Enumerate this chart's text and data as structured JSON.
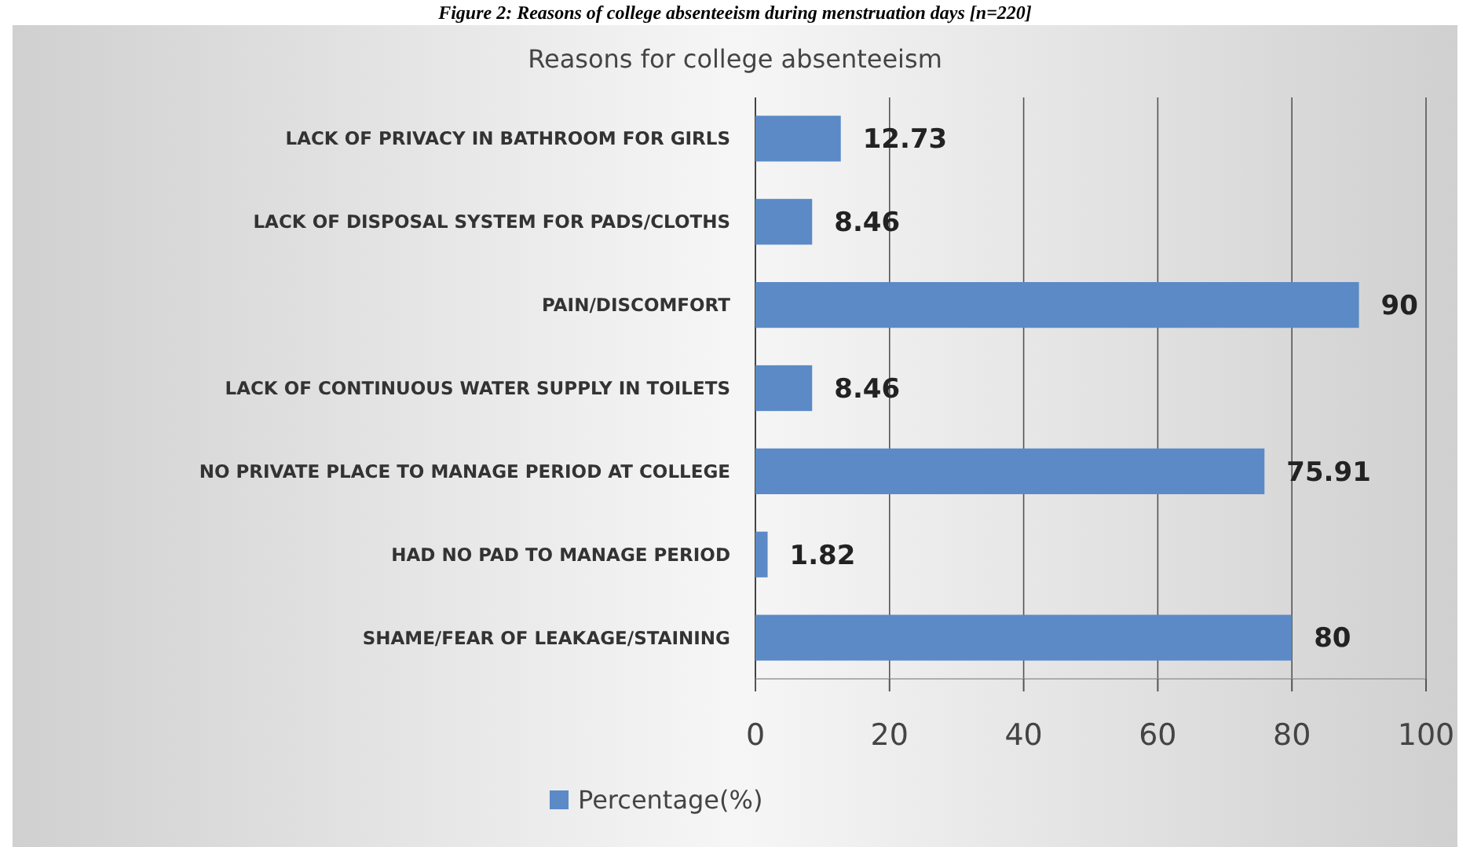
{
  "chart_data": {
    "type": "bar",
    "orientation": "horizontal",
    "title": "Reasons for college absenteeism",
    "annotations": [
      "Figure 2: Reasons of college absenteeism during menstruation days [n=220]"
    ],
    "categories": [
      "LACK OF PRIVACY IN BATHROOM FOR GIRLS",
      "LACK OF DISPOSAL SYSTEM FOR PADS/CLOTHS",
      "PAIN/DISCOMFORT",
      "LACK OF CONTINUOUS WATER SUPPLY IN TOILETS",
      "NO PRIVATE PLACE TO MANAGE PERIOD AT COLLEGE",
      "HAD NO PAD TO MANAGE PERIOD",
      "SHAME/FEAR OF LEAKAGE/STAINING"
    ],
    "series": [
      {
        "name": "Percentage(%)",
        "color": "#5b8ac6",
        "values": [
          12.73,
          8.46,
          90,
          8.46,
          75.91,
          1.82,
          80
        ]
      }
    ],
    "data_labels": true,
    "xlim": [
      0,
      100
    ],
    "xticks": [
      0,
      20,
      40,
      60,
      80,
      100
    ],
    "grid": "x",
    "legend": "bottom"
  }
}
